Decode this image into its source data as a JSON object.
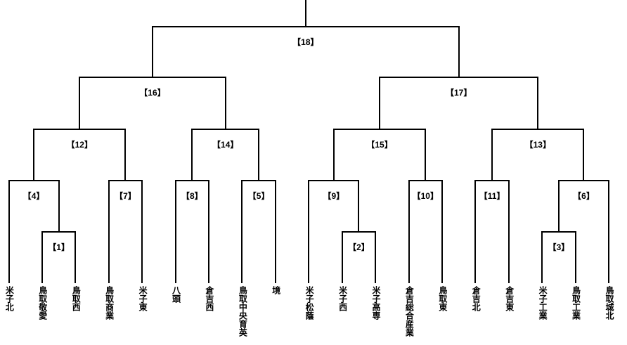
{
  "bracket": {
    "teams": [
      {
        "name": "米子北"
      },
      {
        "name": "鳥取敬愛"
      },
      {
        "name": "鳥取西"
      },
      {
        "name": "鳥取商業"
      },
      {
        "name": "米子東"
      },
      {
        "name": "八頭"
      },
      {
        "name": "倉吉西"
      },
      {
        "name": "鳥取中央育英"
      },
      {
        "name": "境"
      },
      {
        "name": "米子松蔭"
      },
      {
        "name": "米子西"
      },
      {
        "name": "米子高専"
      },
      {
        "name": "倉吉総合産業"
      },
      {
        "name": "鳥取東"
      },
      {
        "name": "倉吉北"
      },
      {
        "name": "倉吉東"
      },
      {
        "name": "米子工業"
      },
      {
        "name": "鳥取工業"
      },
      {
        "name": "鳥取城北"
      }
    ],
    "matches": [
      {
        "id": 1,
        "label": "【1】",
        "round": 0,
        "feeds": [
          "T1",
          "T2"
        ]
      },
      {
        "id": 2,
        "label": "【2】",
        "round": 0,
        "feeds": [
          "T10",
          "T11"
        ]
      },
      {
        "id": 3,
        "label": "【3】",
        "round": 0,
        "feeds": [
          "T16",
          "T17"
        ]
      },
      {
        "id": 4,
        "label": "【4】",
        "round": 1,
        "feeds": [
          "T0",
          "M1"
        ]
      },
      {
        "id": 5,
        "label": "【5】",
        "round": 1,
        "feeds": [
          "T7",
          "T8"
        ]
      },
      {
        "id": 6,
        "label": "【6】",
        "round": 1,
        "feeds": [
          "M3",
          "T18"
        ]
      },
      {
        "id": 7,
        "label": "【7】",
        "round": 1,
        "feeds": [
          "T3",
          "T4"
        ]
      },
      {
        "id": 8,
        "label": "【8】",
        "round": 1,
        "feeds": [
          "T5",
          "T6"
        ]
      },
      {
        "id": 9,
        "label": "【9】",
        "round": 1,
        "feeds": [
          "T9",
          "M2"
        ]
      },
      {
        "id": 10,
        "label": "【10】",
        "round": 1,
        "feeds": [
          "T12",
          "T13"
        ]
      },
      {
        "id": 11,
        "label": "【11】",
        "round": 1,
        "feeds": [
          "T14",
          "T15"
        ]
      },
      {
        "id": 12,
        "label": "【12】",
        "round": 2,
        "feeds": [
          "M4",
          "M7"
        ]
      },
      {
        "id": 13,
        "label": "【13】",
        "round": 2,
        "feeds": [
          "M11",
          "M6"
        ]
      },
      {
        "id": 14,
        "label": "【14】",
        "round": 2,
        "feeds": [
          "M8",
          "M5"
        ]
      },
      {
        "id": 15,
        "label": "【15】",
        "round": 2,
        "feeds": [
          "M9",
          "M10"
        ]
      },
      {
        "id": 16,
        "label": "【16】",
        "round": 3,
        "feeds": [
          "M12",
          "M14"
        ]
      },
      {
        "id": 17,
        "label": "【17】",
        "round": 3,
        "feeds": [
          "M15",
          "M13"
        ]
      },
      {
        "id": 18,
        "label": "【18】",
        "round": 4,
        "feeds": [
          "M16",
          "M17"
        ]
      }
    ],
    "final_match_id": 18,
    "champion_line": true
  },
  "colors": {
    "line": "#000000",
    "text": "#000000",
    "background": "#ffffff"
  }
}
